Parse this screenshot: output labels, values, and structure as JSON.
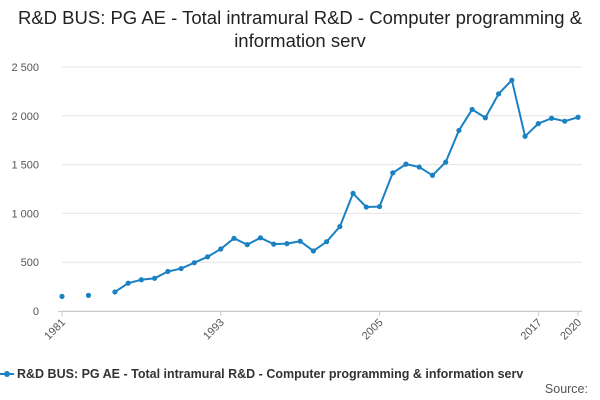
{
  "chart_data": {
    "type": "line",
    "title": "R&D BUS: PG AE - Total intramural R&D - Computer programming & information serv",
    "xlabel": "",
    "ylabel": "",
    "x_tick_labels": [
      "1981",
      "1993",
      "2005",
      "2017",
      "2020"
    ],
    "y_tick_labels": [
      "0",
      "500",
      "1 000",
      "1 500",
      "2 000",
      "2 500"
    ],
    "ylim": [
      0,
      2500
    ],
    "xlim": [
      1981,
      2020
    ],
    "grid": true,
    "legend_position": "bottom",
    "series": [
      {
        "name": "R&D BUS: PG AE - Total intramural R&D - Computer programming & information serv",
        "color": "#1a81c3",
        "points": [
          {
            "x": 1981,
            "y": 150
          },
          {
            "x": 1983,
            "y": 160
          },
          {
            "x": 1985,
            "y": 195
          },
          {
            "x": 1986,
            "y": 285
          },
          {
            "x": 1987,
            "y": 320
          },
          {
            "x": 1988,
            "y": 335
          },
          {
            "x": 1989,
            "y": 405
          },
          {
            "x": 1990,
            "y": 435
          },
          {
            "x": 1991,
            "y": 495
          },
          {
            "x": 1992,
            "y": 555
          },
          {
            "x": 1993,
            "y": 635
          },
          {
            "x": 1994,
            "y": 745
          },
          {
            "x": 1995,
            "y": 680
          },
          {
            "x": 1996,
            "y": 750
          },
          {
            "x": 1997,
            "y": 685
          },
          {
            "x": 1998,
            "y": 690
          },
          {
            "x": 1999,
            "y": 715
          },
          {
            "x": 2000,
            "y": 615
          },
          {
            "x": 2001,
            "y": 710
          },
          {
            "x": 2002,
            "y": 865
          },
          {
            "x": 2003,
            "y": 1205
          },
          {
            "x": 2004,
            "y": 1065
          },
          {
            "x": 2005,
            "y": 1070
          },
          {
            "x": 2006,
            "y": 1415
          },
          {
            "x": 2007,
            "y": 1505
          },
          {
            "x": 2008,
            "y": 1475
          },
          {
            "x": 2009,
            "y": 1390
          },
          {
            "x": 2010,
            "y": 1525
          },
          {
            "x": 2011,
            "y": 1850
          },
          {
            "x": 2012,
            "y": 2065
          },
          {
            "x": 2013,
            "y": 1980
          },
          {
            "x": 2014,
            "y": 2225
          },
          {
            "x": 2015,
            "y": 2365
          },
          {
            "x": 2016,
            "y": 1790
          },
          {
            "x": 2017,
            "y": 1920
          },
          {
            "x": 2018,
            "y": 1975
          },
          {
            "x": 2019,
            "y": 1945
          },
          {
            "x": 2020,
            "y": 1985
          }
        ]
      }
    ]
  },
  "legend": {
    "label": "R&D BUS: PG AE - Total intramural R&D - Computer programming & information serv"
  },
  "footer": {
    "source_label": "Source:"
  }
}
